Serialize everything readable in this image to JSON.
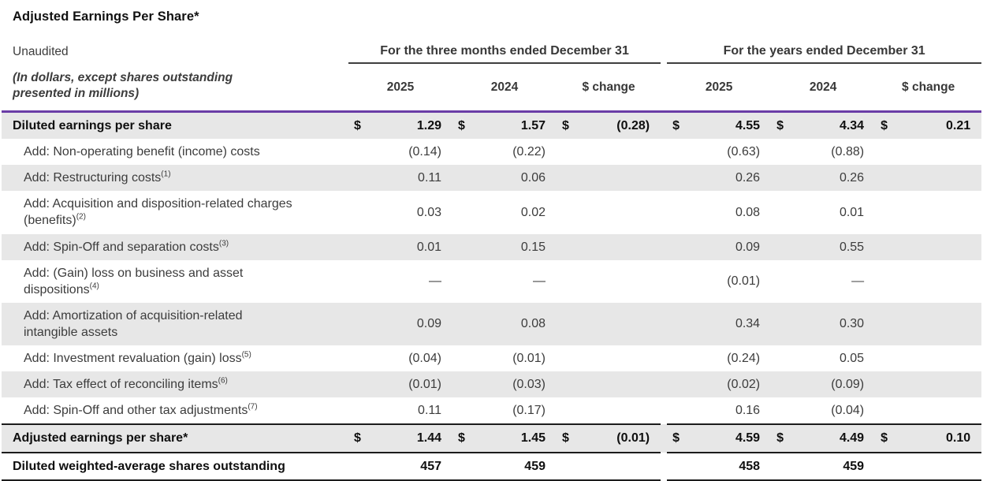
{
  "title": "Adjusted Earnings Per Share*",
  "subtitle": "Unaudited",
  "note": "(In dollars, except shares outstanding presented in millions)",
  "groups": [
    {
      "label": "For the three months ended December 31"
    },
    {
      "label": "For the years ended December 31"
    }
  ],
  "column_headers": [
    "2025",
    "2024",
    "$ change"
  ],
  "colors": {
    "header_rule": "#6a3da6",
    "section_rule": "#1c1c1c",
    "row_shading": "#e7e7e7"
  },
  "table": {
    "rows": [
      {
        "label": "Diluted earnings per share",
        "sup": "",
        "type": "total",
        "indent": false,
        "shaded": true,
        "line_above": false,
        "line_below": false,
        "cells": [
          [
            "$",
            "1.29"
          ],
          [
            "$",
            "1.57"
          ],
          [
            "$",
            "(0.28)"
          ],
          [
            "$",
            "4.55"
          ],
          [
            "$",
            "4.34"
          ],
          [
            "$",
            "0.21"
          ]
        ]
      },
      {
        "label": "Add: Non-operating benefit (income) costs",
        "sup": "",
        "type": "item",
        "indent": true,
        "shaded": false,
        "line_above": false,
        "line_below": false,
        "cells": [
          [
            "",
            "(0.14)"
          ],
          [
            "",
            "(0.22)"
          ],
          [
            "",
            ""
          ],
          [
            "",
            "(0.63)"
          ],
          [
            "",
            "(0.88)"
          ],
          [
            "",
            ""
          ]
        ]
      },
      {
        "label": "Add: Restructuring costs",
        "sup": "(1)",
        "type": "item",
        "indent": true,
        "shaded": true,
        "line_above": false,
        "line_below": false,
        "cells": [
          [
            "",
            "0.11"
          ],
          [
            "",
            "0.06"
          ],
          [
            "",
            ""
          ],
          [
            "",
            "0.26"
          ],
          [
            "",
            "0.26"
          ],
          [
            "",
            ""
          ]
        ]
      },
      {
        "label": "Add: Acquisition and disposition-related charges (benefits)",
        "sup": "(2)",
        "type": "item",
        "indent": true,
        "shaded": false,
        "line_above": false,
        "line_below": false,
        "cells": [
          [
            "",
            "0.03"
          ],
          [
            "",
            "0.02"
          ],
          [
            "",
            ""
          ],
          [
            "",
            "0.08"
          ],
          [
            "",
            "0.01"
          ],
          [
            "",
            ""
          ]
        ]
      },
      {
        "label": "Add: Spin-Off and separation costs",
        "sup": "(3)",
        "type": "item",
        "indent": true,
        "shaded": true,
        "line_above": false,
        "line_below": false,
        "cells": [
          [
            "",
            "0.01"
          ],
          [
            "",
            "0.15"
          ],
          [
            "",
            ""
          ],
          [
            "",
            "0.09"
          ],
          [
            "",
            "0.55"
          ],
          [
            "",
            ""
          ]
        ]
      },
      {
        "label": "Add: (Gain) loss on business and asset dispositions",
        "sup": "(4)",
        "type": "item",
        "indent": true,
        "shaded": false,
        "line_above": false,
        "line_below": false,
        "cells": [
          [
            "",
            "—"
          ],
          [
            "",
            "—"
          ],
          [
            "",
            ""
          ],
          [
            "",
            "(0.01)"
          ],
          [
            "",
            "—"
          ],
          [
            "",
            ""
          ]
        ]
      },
      {
        "label": "Add: Amortization of acquisition-related intangible assets",
        "sup": "",
        "type": "item",
        "indent": true,
        "shaded": true,
        "line_above": false,
        "line_below": false,
        "cells": [
          [
            "",
            "0.09"
          ],
          [
            "",
            "0.08"
          ],
          [
            "",
            ""
          ],
          [
            "",
            "0.34"
          ],
          [
            "",
            "0.30"
          ],
          [
            "",
            ""
          ]
        ]
      },
      {
        "label": "Add: Investment revaluation (gain) loss",
        "sup": "(5)",
        "type": "item",
        "indent": true,
        "shaded": false,
        "line_above": false,
        "line_below": false,
        "cells": [
          [
            "",
            "(0.04)"
          ],
          [
            "",
            "(0.01)"
          ],
          [
            "",
            ""
          ],
          [
            "",
            "(0.24)"
          ],
          [
            "",
            "0.05"
          ],
          [
            "",
            ""
          ]
        ]
      },
      {
        "label": "Add: Tax effect of reconciling items",
        "sup": "(6)",
        "type": "item",
        "indent": true,
        "shaded": true,
        "line_above": false,
        "line_below": false,
        "cells": [
          [
            "",
            "(0.01)"
          ],
          [
            "",
            "(0.03)"
          ],
          [
            "",
            ""
          ],
          [
            "",
            "(0.02)"
          ],
          [
            "",
            "(0.09)"
          ],
          [
            "",
            ""
          ]
        ]
      },
      {
        "label": "Add: Spin-Off and other tax adjustments",
        "sup": "(7)",
        "type": "item",
        "indent": true,
        "shaded": false,
        "line_above": false,
        "line_below": false,
        "cells": [
          [
            "",
            "0.11"
          ],
          [
            "",
            "(0.17)"
          ],
          [
            "",
            ""
          ],
          [
            "",
            "0.16"
          ],
          [
            "",
            "(0.04)"
          ],
          [
            "",
            ""
          ]
        ]
      },
      {
        "label": "Adjusted earnings per share*",
        "sup": "",
        "type": "total",
        "indent": false,
        "shaded": true,
        "line_above": true,
        "line_below": true,
        "cells": [
          [
            "$",
            "1.44"
          ],
          [
            "$",
            "1.45"
          ],
          [
            "$",
            "(0.01)"
          ],
          [
            "$",
            "4.59"
          ],
          [
            "$",
            "4.49"
          ],
          [
            "$",
            "0.10"
          ]
        ]
      },
      {
        "label": "Diluted weighted-average shares outstanding",
        "sup": "",
        "type": "total",
        "indent": false,
        "shaded": false,
        "line_above": false,
        "line_below": true,
        "cells": [
          [
            "",
            "457"
          ],
          [
            "",
            "459"
          ],
          [
            "",
            ""
          ],
          [
            "",
            "458"
          ],
          [
            "",
            "459"
          ],
          [
            "",
            ""
          ]
        ]
      }
    ]
  }
}
